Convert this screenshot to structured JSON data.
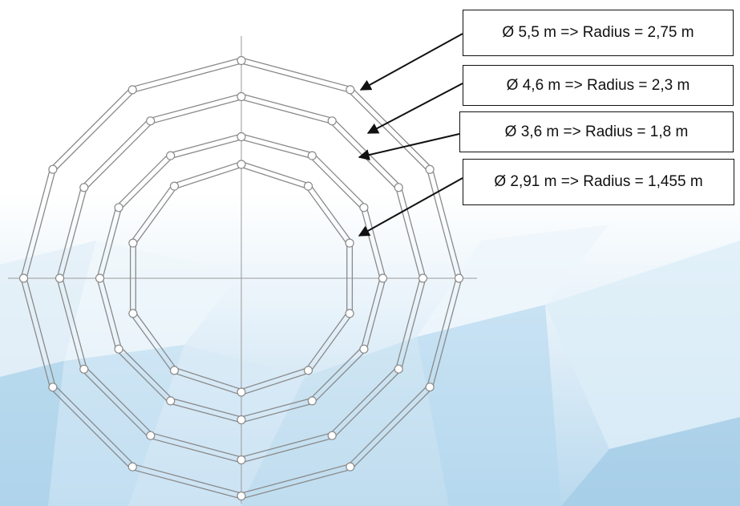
{
  "diagram": {
    "labels": [
      "Ø 5,5 m => Radius = 2,75 m",
      "Ø 4,6 m => Radius = 2,3 m",
      "Ø 3,6 m => Radius = 1,8 m",
      "Ø 2,91 m => Radius = 1,455 m"
    ],
    "rings": [
      {
        "diameter_m": 5.5,
        "radius_m": 2.75,
        "sides": 12
      },
      {
        "diameter_m": 4.6,
        "radius_m": 2.3,
        "sides": 12
      },
      {
        "diameter_m": 3.6,
        "radius_m": 1.8,
        "sides": 12
      },
      {
        "diameter_m": 2.91,
        "radius_m": 1.455,
        "sides": 10
      }
    ]
  },
  "colors": {
    "ring_stroke": "#8a8a8a",
    "axis_stroke": "#9a9a9a",
    "arrow": "#111111",
    "box_border": "#111111",
    "bg_tint_light": "#eaf4fb",
    "bg_tint_mid": "#bcdcef",
    "bg_tint_dark": "#8cc3e3"
  }
}
